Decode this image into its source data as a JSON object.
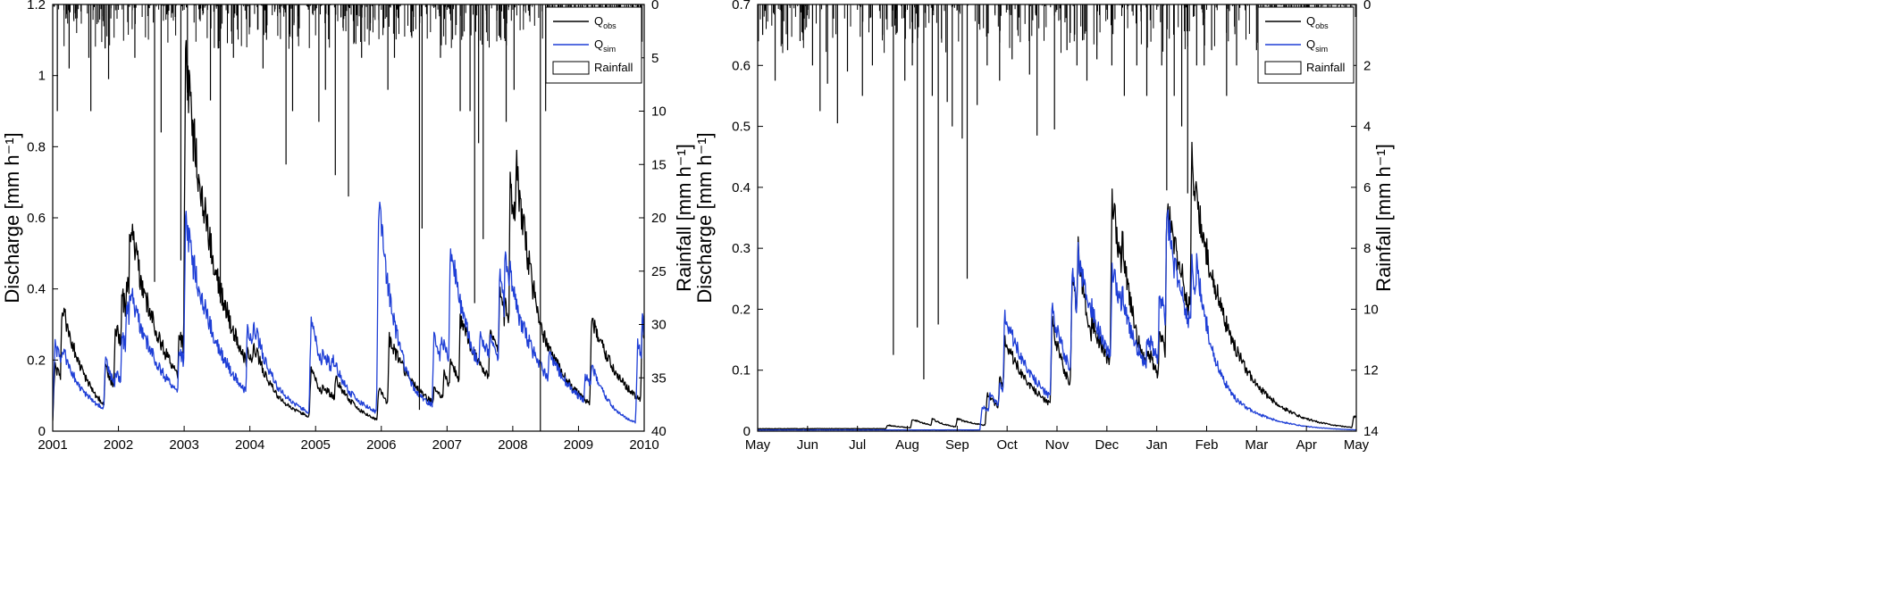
{
  "chart_data": [
    {
      "type": "line",
      "panel": "left",
      "xlim": [
        2001,
        2010
      ],
      "x_ticks": [
        "2001",
        "2002",
        "2003",
        "2004",
        "2005",
        "2006",
        "2007",
        "2008",
        "2009",
        "2010"
      ],
      "ylabel": "Discharge [mm h⁻¹]",
      "ylim": [
        0,
        1.2
      ],
      "y_ticks": [
        "0",
        "0.2",
        "0.4",
        "0.6",
        "0.8",
        "1",
        "1.2"
      ],
      "y2label": "Rainfall [mm h⁻¹]",
      "y2lim": [
        0,
        40
      ],
      "y2_inverted": true,
      "y2_ticks": [
        "0",
        "5",
        "10",
        "15",
        "20",
        "25",
        "30",
        "35",
        "40"
      ],
      "legend": {
        "position": "top-right",
        "entries": [
          {
            "main": "Q",
            "sub": "obs",
            "color": "#000000",
            "kind": "line"
          },
          {
            "main": "Q",
            "sub": "sim",
            "color": "#1f3fd6",
            "kind": "line"
          },
          {
            "main": "Rainfall",
            "sub": "",
            "color": "#000000",
            "kind": "box"
          }
        ]
      },
      "series": [
        {
          "name": "Qobs",
          "color": "#000000",
          "kind": "hydrograph",
          "base": 0.004,
          "events": [
            [
              2001.03,
              0.18
            ],
            [
              2001.14,
              0.36
            ],
            [
              2001.8,
              0.18
            ],
            [
              2001.95,
              0.3
            ],
            [
              2002.05,
              0.39
            ],
            [
              2002.12,
              0.44
            ],
            [
              2002.17,
              0.58
            ],
            [
              2002.22,
              0.57
            ],
            [
              2002.92,
              0.29
            ],
            [
              2003.02,
              1.03
            ],
            [
              2003.07,
              0.64
            ],
            [
              2003.25,
              0.05
            ],
            [
              2003.96,
              0.22
            ],
            [
              2004.05,
              0.25
            ],
            [
              2004.93,
              0.18
            ],
            [
              2005.1,
              0.13
            ],
            [
              2005.3,
              0.15
            ],
            [
              2005.96,
              0.12
            ],
            [
              2006.12,
              0.26
            ],
            [
              2006.22,
              0.19
            ],
            [
              2006.42,
              0.05
            ],
            [
              2006.8,
              0.12
            ],
            [
              2006.95,
              0.16
            ],
            [
              2007.05,
              0.21
            ],
            [
              2007.2,
              0.32
            ],
            [
              2007.37,
              0.05
            ],
            [
              2007.5,
              0.13
            ],
            [
              2007.65,
              0.28
            ],
            [
              2007.8,
              0.38
            ],
            [
              2007.88,
              0.36
            ],
            [
              2007.96,
              0.67
            ],
            [
              2008.05,
              0.76
            ],
            [
              2008.14,
              0.42
            ],
            [
              2008.22,
              0.3
            ],
            [
              2008.4,
              0.2
            ],
            [
              2008.55,
              0.09
            ],
            [
              2009.2,
              0.32
            ],
            [
              2009.9,
              0.09
            ],
            [
              2009.97,
              0.3
            ]
          ]
        },
        {
          "name": "Qsim",
          "color": "#1f3fd6",
          "kind": "hydrograph",
          "base": 0.002,
          "events": [
            [
              2001.03,
              0.24
            ],
            [
              2001.14,
              0.24
            ],
            [
              2001.8,
              0.2
            ],
            [
              2001.95,
              0.17
            ],
            [
              2002.05,
              0.27
            ],
            [
              2002.12,
              0.37
            ],
            [
              2002.17,
              0.4
            ],
            [
              2002.22,
              0.38
            ],
            [
              2002.92,
              0.24
            ],
            [
              2003.02,
              0.58
            ],
            [
              2003.07,
              0.48
            ],
            [
              2003.35,
              0.19
            ],
            [
              2003.96,
              0.28
            ],
            [
              2004.05,
              0.31
            ],
            [
              2004.93,
              0.32
            ],
            [
              2005.1,
              0.23
            ],
            [
              2005.25,
              0.21
            ],
            [
              2005.96,
              0.64
            ],
            [
              2006.12,
              0.23
            ],
            [
              2006.22,
              0.18
            ],
            [
              2006.8,
              0.27
            ],
            [
              2006.9,
              0.26
            ],
            [
              2007.05,
              0.53
            ],
            [
              2007.2,
              0.34
            ],
            [
              2007.5,
              0.27
            ],
            [
              2007.65,
              0.27
            ],
            [
              2007.8,
              0.43
            ],
            [
              2007.88,
              0.48
            ],
            [
              2007.96,
              0.44
            ],
            [
              2008.05,
              0.23
            ],
            [
              2008.14,
              0.3
            ],
            [
              2008.22,
              0.23
            ],
            [
              2008.4,
              0.21
            ],
            [
              2008.55,
              0.22
            ],
            [
              2009.1,
              0.16
            ],
            [
              2009.2,
              0.19
            ],
            [
              2009.5,
              0.03
            ],
            [
              2009.9,
              0.24
            ],
            [
              2009.97,
              0.31
            ]
          ]
        },
        {
          "name": "Rainfall",
          "color": "#000000",
          "kind": "rain",
          "events": [
            [
              2001.07,
              10
            ],
            [
              2001.25,
              6
            ],
            [
              2001.55,
              5
            ],
            [
              2001.58,
              10
            ],
            [
              2001.85,
              7
            ],
            [
              2002.25,
              5
            ],
            [
              2002.55,
              26
            ],
            [
              2002.65,
              12
            ],
            [
              2002.95,
              24
            ],
            [
              2003.05,
              9
            ],
            [
              2003.4,
              9
            ],
            [
              2003.55,
              28
            ],
            [
              2003.75,
              5
            ],
            [
              2004.2,
              6
            ],
            [
              2004.55,
              15
            ],
            [
              2004.65,
              10
            ],
            [
              2005.05,
              11
            ],
            [
              2005.15,
              8
            ],
            [
              2005.3,
              16
            ],
            [
              2005.5,
              18
            ],
            [
              2005.7,
              5
            ],
            [
              2006.1,
              8
            ],
            [
              2006.2,
              5
            ],
            [
              2006.58,
              38
            ],
            [
              2006.62,
              21
            ],
            [
              2006.9,
              5
            ],
            [
              2007.2,
              10
            ],
            [
              2007.35,
              10
            ],
            [
              2007.42,
              28
            ],
            [
              2007.48,
              13
            ],
            [
              2007.55,
              22
            ],
            [
              2007.9,
              11
            ],
            [
              2008.02,
              8
            ],
            [
              2008.42,
              40
            ],
            [
              2008.5,
              10
            ],
            [
              2008.7,
              6
            ],
            [
              2008.95,
              5
            ],
            [
              2009.2,
              7
            ],
            [
              2009.95,
              5
            ]
          ],
          "density": {
            "seed": 11,
            "per_unit": 70,
            "max": 4.2
          }
        }
      ]
    },
    {
      "type": "line",
      "panel": "right",
      "x_ticks": [
        "May",
        "Jun",
        "Jul",
        "Aug",
        "Sep",
        "Oct",
        "Nov",
        "Dec",
        "Jan",
        "Feb",
        "Mar",
        "Apr",
        "May"
      ],
      "xlim": [
        0,
        12
      ],
      "ylabel": "Discharge [mm h⁻¹]",
      "ylim": [
        0,
        0.7
      ],
      "y_ticks": [
        "0",
        "0.1",
        "0.2",
        "0.3",
        "0.4",
        "0.5",
        "0.6",
        "0.7"
      ],
      "y2label": "Rainfall [mm h⁻¹]",
      "y2lim": [
        0,
        14
      ],
      "y2_inverted": true,
      "y2_ticks": [
        "0",
        "2",
        "4",
        "6",
        "8",
        "10",
        "12",
        "14"
      ],
      "legend": {
        "position": "top-right",
        "entries": [
          {
            "main": "Q",
            "sub": "obs",
            "color": "#000000",
            "kind": "line"
          },
          {
            "main": "Q",
            "sub": "sim",
            "color": "#1f3fd6",
            "kind": "line"
          },
          {
            "main": "Rainfall",
            "sub": "",
            "color": "#000000",
            "kind": "box"
          }
        ]
      },
      "series": [
        {
          "name": "Qobs",
          "color": "#000000",
          "kind": "hydrograph",
          "base": 0.004,
          "events": [
            [
              2.6,
              0.01
            ],
            [
              3.1,
              0.02
            ],
            [
              3.5,
              0.02
            ],
            [
              4.0,
              0.02
            ],
            [
              4.6,
              0.06
            ],
            [
              4.85,
              0.09
            ],
            [
              4.95,
              0.15
            ],
            [
              5.5,
              0.06
            ],
            [
              5.9,
              0.18
            ],
            [
              6.05,
              0.07
            ],
            [
              6.3,
              0.25
            ],
            [
              6.42,
              0.3
            ],
            [
              6.7,
              0.18
            ],
            [
              7.1,
              0.39
            ],
            [
              7.3,
              0.32
            ],
            [
              7.55,
              0.13
            ],
            [
              7.8,
              0.14
            ],
            [
              8.05,
              0.17
            ],
            [
              8.2,
              0.37
            ],
            [
              8.35,
              0.29
            ],
            [
              8.5,
              0.26
            ],
            [
              8.7,
              0.44
            ],
            [
              8.8,
              0.27
            ],
            [
              9.0,
              0.14
            ],
            [
              9.3,
              0.09
            ],
            [
              9.6,
              0.05
            ],
            [
              10.1,
              0.02
            ],
            [
              10.6,
              0.02
            ],
            [
              11.0,
              0.015
            ],
            [
              11.95,
              0.025
            ]
          ]
        },
        {
          "name": "Qsim",
          "color": "#1f3fd6",
          "kind": "hydrograph",
          "base": 0.002,
          "events": [
            [
              4.5,
              0.04
            ],
            [
              4.65,
              0.06
            ],
            [
              4.85,
              0.08
            ],
            [
              4.95,
              0.19
            ],
            [
              5.9,
              0.2
            ],
            [
              6.3,
              0.26
            ],
            [
              6.42,
              0.29
            ],
            [
              6.6,
              0.17
            ],
            [
              6.75,
              0.16
            ],
            [
              7.1,
              0.27
            ],
            [
              7.3,
              0.23
            ],
            [
              7.55,
              0.13
            ],
            [
              7.8,
              0.16
            ],
            [
              8.05,
              0.23
            ],
            [
              8.2,
              0.37
            ],
            [
              8.35,
              0.27
            ],
            [
              8.7,
              0.27
            ],
            [
              8.8,
              0.28
            ],
            [
              9.3,
              0.06
            ],
            [
              9.45,
              0.05
            ]
          ]
        },
        {
          "name": "Rainfall",
          "color": "#000000",
          "kind": "rain",
          "events": [
            [
              0.1,
              1
            ],
            [
              0.35,
              2.5
            ],
            [
              0.6,
              1.5
            ],
            [
              0.85,
              1.2
            ],
            [
              1.1,
              2
            ],
            [
              1.25,
              3.5
            ],
            [
              1.4,
              2.6
            ],
            [
              1.6,
              3.9
            ],
            [
              1.8,
              2.2
            ],
            [
              2.1,
              3
            ],
            [
              2.3,
              2
            ],
            [
              2.5,
              1
            ],
            [
              2.72,
              11.5
            ],
            [
              2.95,
              2.5
            ],
            [
              3.1,
              2
            ],
            [
              3.2,
              10.6
            ],
            [
              3.33,
              12.3
            ],
            [
              3.5,
              3
            ],
            [
              3.62,
              10.5
            ],
            [
              3.8,
              3.2
            ],
            [
              3.9,
              4
            ],
            [
              4.1,
              4.4
            ],
            [
              4.2,
              9
            ],
            [
              4.4,
              3.3
            ],
            [
              4.6,
              2
            ],
            [
              4.85,
              2.5
            ],
            [
              5.1,
              1.8
            ],
            [
              5.45,
              2.3
            ],
            [
              5.6,
              4.3
            ],
            [
              5.95,
              4.1
            ],
            [
              6.2,
              1.5
            ],
            [
              6.4,
              2
            ],
            [
              6.6,
              2.5
            ],
            [
              6.8,
              1.8
            ],
            [
              7.1,
              2
            ],
            [
              7.35,
              3
            ],
            [
              7.6,
              2
            ],
            [
              7.8,
              3
            ],
            [
              8.1,
              2
            ],
            [
              8.2,
              6.1
            ],
            [
              8.35,
              3
            ],
            [
              8.5,
              4
            ],
            [
              8.62,
              6.2
            ],
            [
              8.8,
              2
            ],
            [
              8.95,
              2
            ],
            [
              9.1,
              1.5
            ],
            [
              9.4,
              3
            ],
            [
              9.6,
              2
            ],
            [
              10.0,
              1.5
            ],
            [
              10.4,
              1.5
            ],
            [
              10.8,
              1.5
            ],
            [
              11.2,
              2
            ],
            [
              11.5,
              1.5
            ],
            [
              11.8,
              1.2
            ]
          ],
          "density": {
            "seed": 23,
            "per_unit": 35,
            "max": 1.6
          }
        }
      ]
    }
  ]
}
